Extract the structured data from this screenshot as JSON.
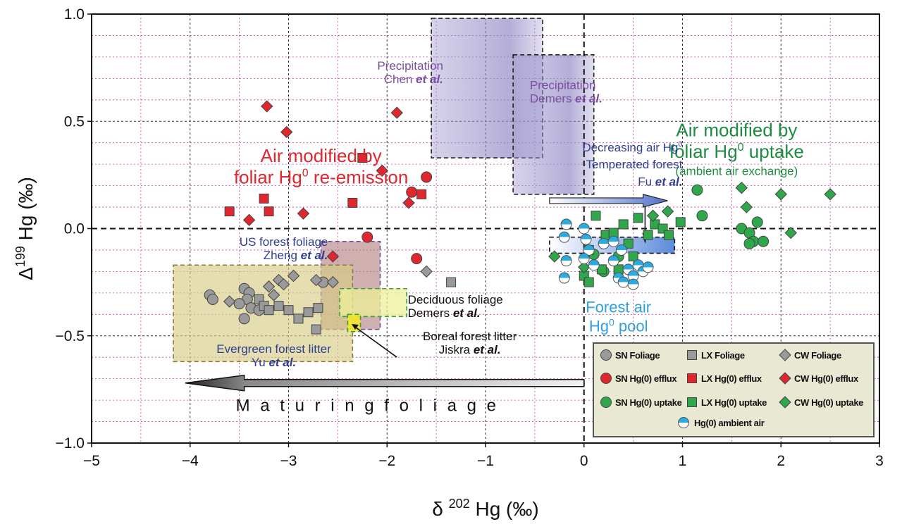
{
  "chart_data": {
    "type": "scatter",
    "xlabel": "δ 202 Hg (‰)",
    "ylabel": "Δ199 Hg (‰)",
    "xlim": [
      -5,
      3
    ],
    "ylim": [
      -1.0,
      1.0
    ],
    "x_ticks": [
      "−5",
      "−4",
      "−3",
      "−2",
      "−1",
      "0",
      "1",
      "2",
      "3"
    ],
    "y_ticks": [
      "1.0",
      "0.5",
      "0.0",
      "−0.5",
      "−1.0"
    ],
    "grid": true,
    "legend_position": "bottom-right",
    "series": [
      {
        "name": "SN Foliage",
        "marker": "circle",
        "color": "#9a9a9a",
        "points": [
          [
            -3.8,
            -0.31
          ],
          [
            -3.77,
            -0.33
          ],
          [
            -3.45,
            -0.28
          ],
          [
            -3.4,
            -0.3
          ],
          [
            -3.42,
            -0.33
          ],
          [
            -3.38,
            -0.37
          ],
          [
            -3.5,
            -0.35
          ],
          [
            -3.45,
            -0.42
          ],
          [
            -3.3,
            -0.38
          ],
          [
            -2.65,
            -0.25
          ]
        ]
      },
      {
        "name": "LX Foliage",
        "marker": "square",
        "color": "#9a9a9a",
        "points": [
          [
            -3.3,
            -0.33
          ],
          [
            -3.25,
            -0.36
          ],
          [
            -3.2,
            -0.38
          ],
          [
            -3.1,
            -0.36
          ],
          [
            -3.0,
            -0.38
          ],
          [
            -2.9,
            -0.42
          ],
          [
            -2.8,
            -0.39
          ],
          [
            -2.7,
            -0.37
          ],
          [
            -2.72,
            -0.47
          ],
          [
            -1.35,
            -0.25
          ]
        ]
      },
      {
        "name": "CW Foliage",
        "marker": "diamond",
        "color": "#9a9a9a",
        "points": [
          [
            -3.6,
            -0.34
          ],
          [
            -3.2,
            -0.27
          ],
          [
            -3.1,
            -0.24
          ],
          [
            -3.05,
            -0.26
          ],
          [
            -3.15,
            -0.31
          ],
          [
            -2.95,
            -0.22
          ],
          [
            -2.72,
            -0.24
          ],
          [
            -2.55,
            -0.25
          ],
          [
            -1.6,
            -0.2
          ]
        ]
      },
      {
        "name": "SN Hg(0) efflux",
        "marker": "circle",
        "color": "#e0262e",
        "points": [
          [
            -2.2,
            -0.04
          ],
          [
            -1.6,
            0.24
          ],
          [
            -1.75,
            0.17
          ],
          [
            -1.7,
            -0.14
          ]
        ]
      },
      {
        "name": "LX Hg(0) efflux",
        "marker": "square",
        "color": "#e0262e",
        "points": [
          [
            -3.6,
            0.08
          ],
          [
            -3.25,
            0.14
          ],
          [
            -3.2,
            0.08
          ],
          [
            -2.25,
            0.33
          ],
          [
            -2.35,
            0.12
          ],
          [
            -1.65,
            0.16
          ]
        ]
      },
      {
        "name": "CW Hg(0) efflux",
        "marker": "diamond",
        "color": "#e0262e",
        "points": [
          [
            -3.22,
            0.57
          ],
          [
            -3.02,
            0.45
          ],
          [
            -3.4,
            0.04
          ],
          [
            -2.85,
            0.07
          ],
          [
            -2.05,
            0.27
          ],
          [
            -1.9,
            0.54
          ],
          [
            -1.78,
            0.12
          ],
          [
            -2.55,
            -0.13
          ]
        ]
      },
      {
        "name": "SN Hg(0) uptake",
        "marker": "circle",
        "color": "#2ea84a",
        "points": [
          [
            0.1,
            -0.12
          ],
          [
            0.35,
            -0.13
          ],
          [
            0.2,
            -0.2
          ],
          [
            1.15,
            0.18
          ],
          [
            1.2,
            0.06
          ],
          [
            1.6,
            0.0
          ],
          [
            1.68,
            -0.02
          ],
          [
            1.72,
            -0.06
          ],
          [
            1.76,
            0.03
          ],
          [
            1.82,
            -0.06
          ],
          [
            1.68,
            -0.07
          ]
        ]
      },
      {
        "name": "LX Hg(0) uptake",
        "marker": "square",
        "color": "#2ea84a",
        "points": [
          [
            0.05,
            -0.1
          ],
          [
            0.12,
            0.06
          ],
          [
            0.22,
            -0.03
          ],
          [
            0.3,
            -0.02
          ],
          [
            0.4,
            0.02
          ],
          [
            0.45,
            -0.07
          ],
          [
            0.5,
            -0.13
          ],
          [
            0.55,
            0.05
          ],
          [
            0.65,
            -0.03
          ],
          [
            0.72,
            0.02
          ],
          [
            0.8,
            0.0
          ],
          [
            0.86,
            -0.03
          ],
          [
            0.98,
            0.03
          ],
          [
            0.35,
            -0.19
          ],
          [
            0.18,
            -0.19
          ],
          [
            0.0,
            -0.22
          ],
          [
            0.05,
            -0.25
          ]
        ]
      },
      {
        "name": "CW Hg(0) uptake",
        "marker": "diamond",
        "color": "#2ea84a",
        "points": [
          [
            -0.3,
            -0.13
          ],
          [
            0.0,
            -0.18
          ],
          [
            0.7,
            0.06
          ],
          [
            0.85,
            0.08
          ],
          [
            1.6,
            0.19
          ],
          [
            1.65,
            0.1
          ],
          [
            2.0,
            0.16
          ],
          [
            2.1,
            -0.02
          ],
          [
            2.5,
            0.16
          ]
        ]
      },
      {
        "name": "Hg(0) ambient air",
        "marker": "half-circle",
        "color": "#29aae1",
        "points": [
          [
            -0.2,
            -0.23
          ],
          [
            -0.18,
            -0.15
          ],
          [
            -0.2,
            -0.04
          ],
          [
            -0.18,
            0.02
          ],
          [
            0.0,
            0.0
          ],
          [
            0.02,
            -0.05
          ],
          [
            0.05,
            -0.1
          ],
          [
            0.0,
            -0.14
          ],
          [
            0.1,
            -0.17
          ],
          [
            0.2,
            -0.07
          ],
          [
            0.3,
            -0.06
          ],
          [
            0.38,
            -0.1
          ],
          [
            0.3,
            -0.15
          ],
          [
            0.35,
            -0.23
          ],
          [
            0.4,
            -0.25
          ],
          [
            0.45,
            -0.19
          ],
          [
            0.5,
            -0.22
          ],
          [
            0.55,
            -0.17
          ],
          [
            0.6,
            -0.2
          ],
          [
            0.65,
            -0.18
          ],
          [
            0.5,
            -0.26
          ]
        ]
      }
    ],
    "regions": [
      {
        "label": "Precipitation",
        "ref": "Chen et al.",
        "x": [
          -1.55,
          -0.42
        ],
        "y": [
          0.33,
          0.98
        ],
        "color": "#9b93cc"
      },
      {
        "label": "Precipitation",
        "ref": "Demers et al.",
        "x": [
          -0.72,
          0.1
        ],
        "y": [
          0.16,
          0.81
        ],
        "color": "#9b93cc"
      },
      {
        "label": "US forest foliage",
        "ref": "Zheng et al.",
        "x": [
          -2.67,
          -2.07
        ],
        "y": [
          -0.47,
          -0.06
        ],
        "color": "#b07a7c"
      },
      {
        "label": "Evergreen forest litter",
        "ref": "Yu et al.",
        "x": [
          -4.17,
          -2.35
        ],
        "y": [
          -0.62,
          -0.17
        ],
        "color": "#d3cc83"
      },
      {
        "label": "Deciduous foliage",
        "ref": "Demers et al.",
        "x": [
          -2.48,
          -1.8
        ],
        "y": [
          -0.41,
          -0.28
        ],
        "color": "#e7ea8e"
      },
      {
        "label": "Boreal forest litter",
        "ref": "Jiskra et al.",
        "x": [
          -2.4,
          -2.27
        ],
        "y": [
          -0.48,
          -0.4
        ],
        "color": "#f5ec3a"
      },
      {
        "label": "",
        "ref": "",
        "x": [
          -0.35,
          0.92
        ],
        "y": [
          -0.115,
          -0.04
        ],
        "color": "#6c8fd6"
      }
    ],
    "annotations": {
      "reemission_line1": "Air modified by",
      "reemission_line2": "foliar Hg",
      "reemission_line2_sup": "0",
      "reemission_line2_end": " re-emission",
      "uptake_line1": "Air modified by",
      "uptake_line2": "foliar Hg",
      "uptake_line2_sup": "0",
      "uptake_line2_end": " uptake",
      "uptake_line3": "(ambient air exchange)",
      "decreasing_line1": "Decreasing air Hg",
      "decreasing_sup": "0",
      "decreasing_line2": "Temperated forest",
      "decreasing_line3": "Fu ",
      "forest_air_line1": "Forest air",
      "forest_air_line2": "Hg",
      "forest_air_sup": "0",
      "forest_air_line2_end": " pool",
      "maturing": "M a t u r i n g   f o l i a g e",
      "et_al": "et al."
    }
  }
}
